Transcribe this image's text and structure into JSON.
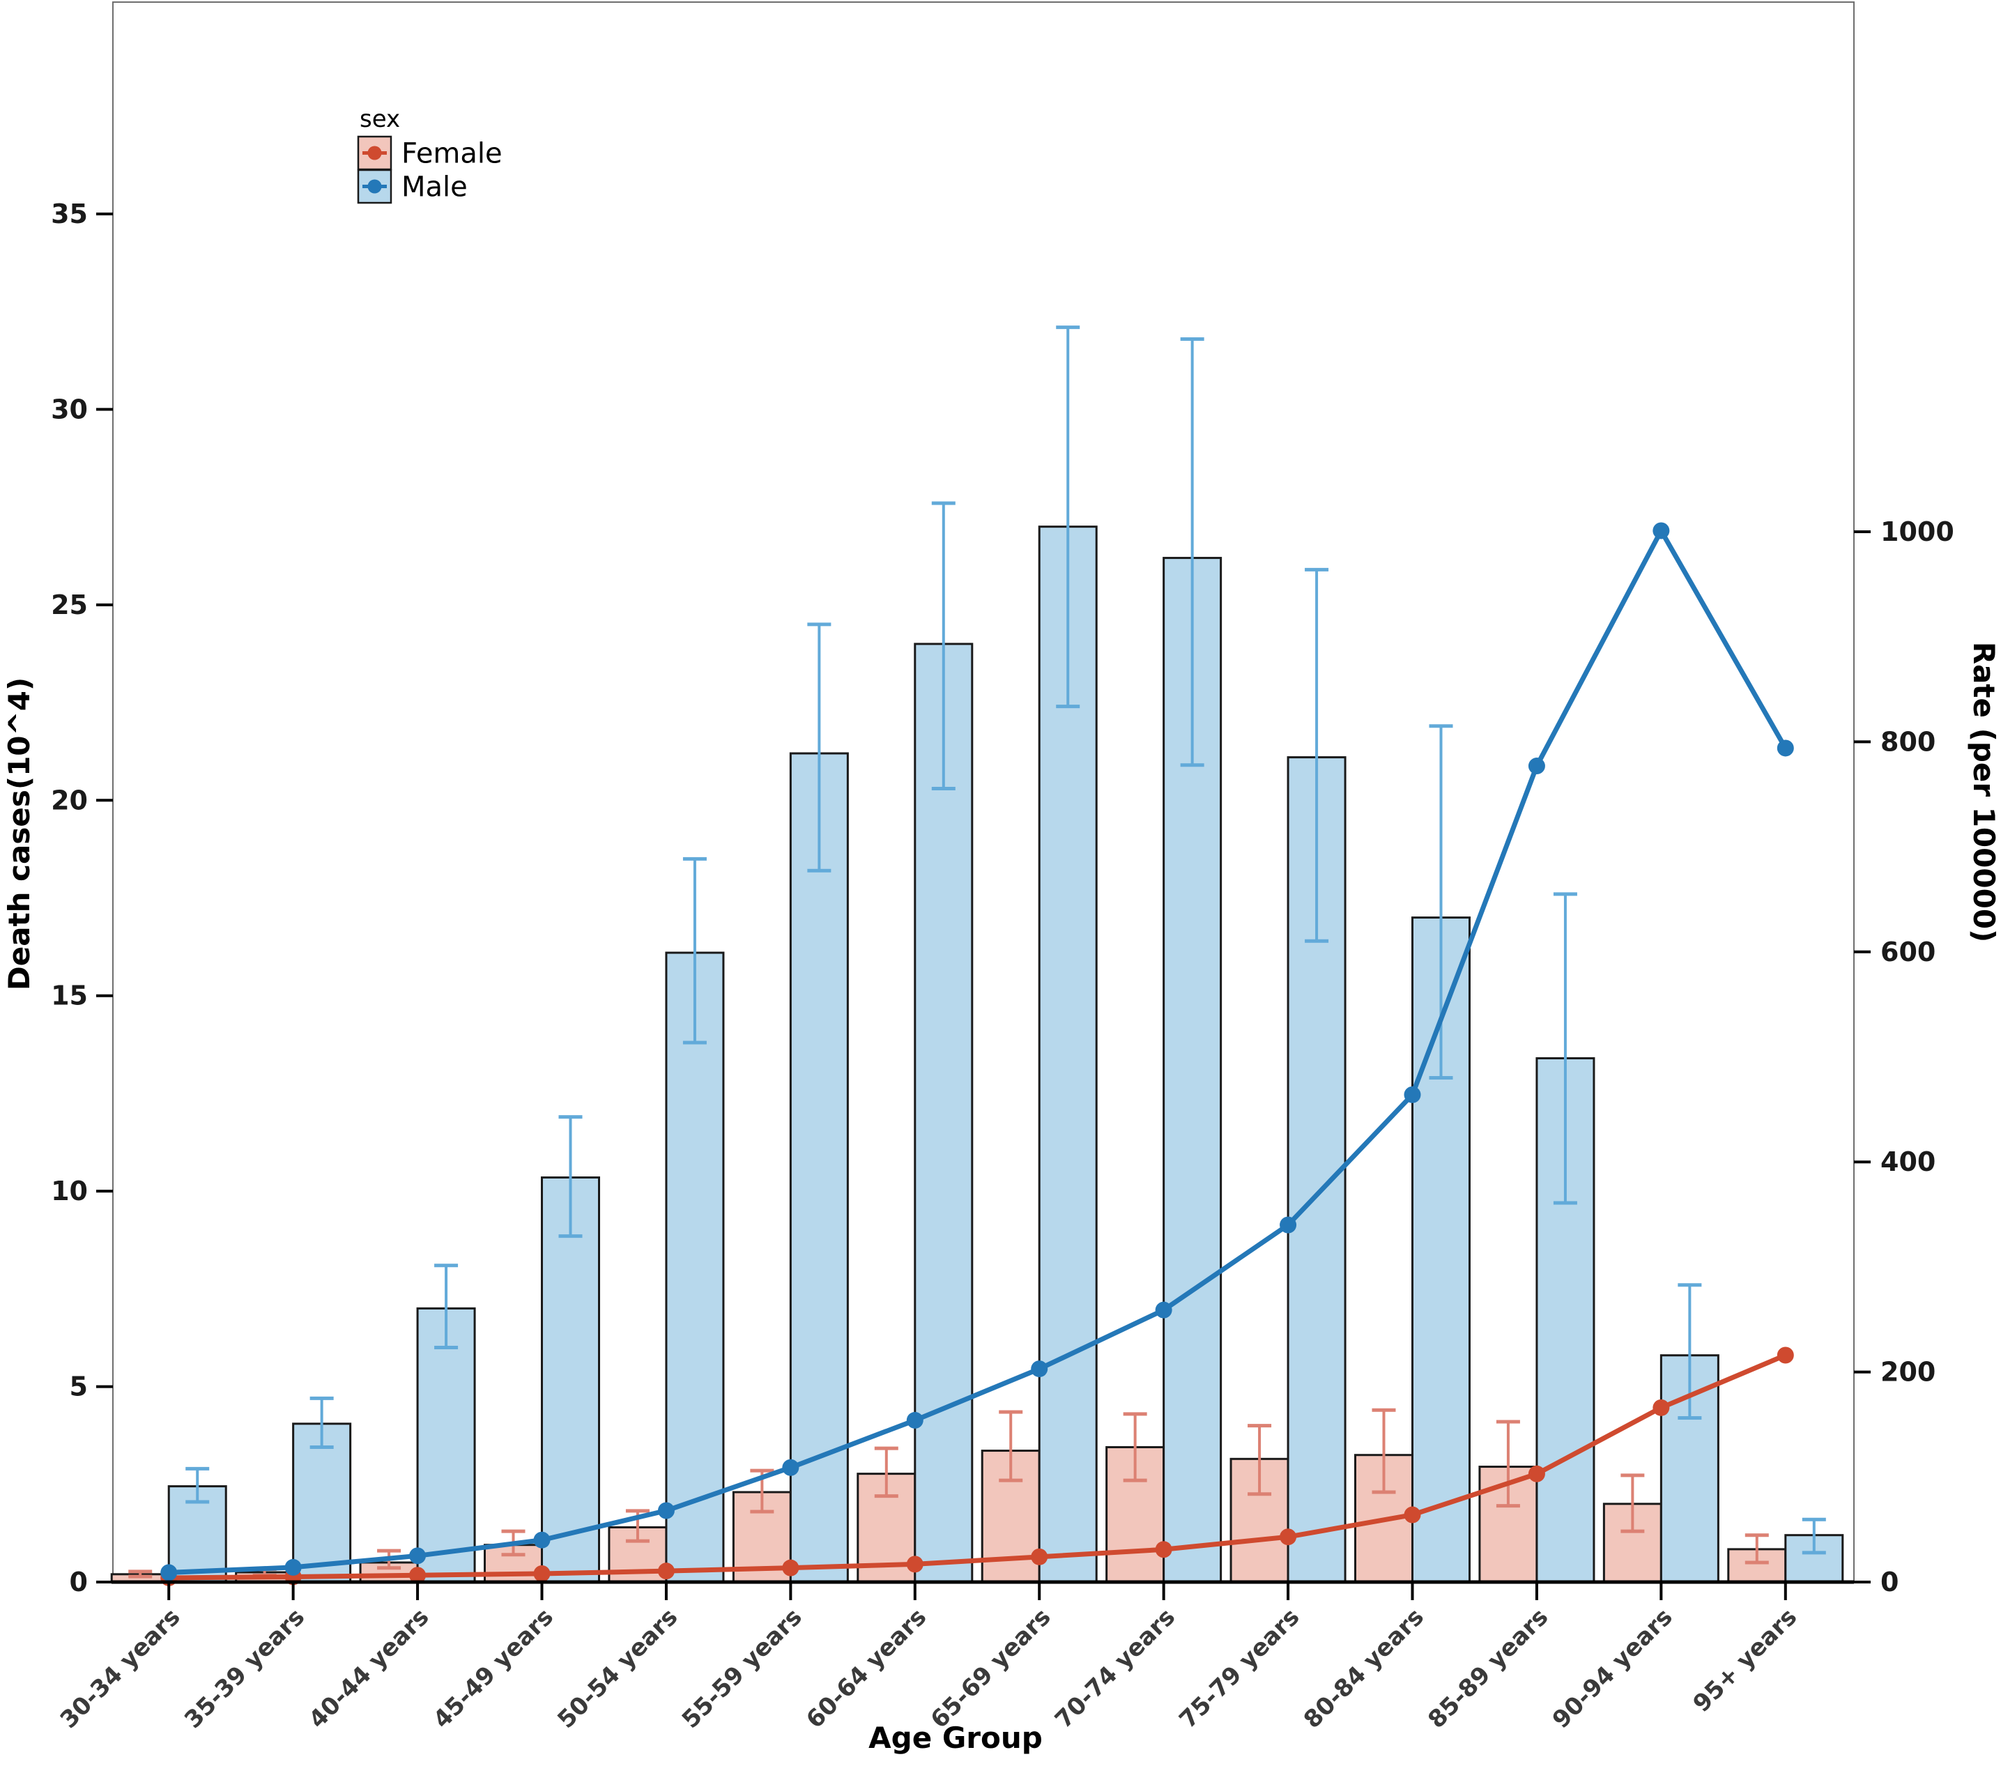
{
  "chart_data": {
    "type": "bar+line-dual-axis",
    "title": "",
    "xlabel": "Age Group",
    "categories": [
      "30-34 years",
      "35-39 years",
      "40-44 years",
      "45-49 years",
      "50-54 years",
      "55-59 years",
      "60-64 years",
      "65-69 years",
      "70-74 years",
      "75-79 years",
      "80-84 years",
      "85-89 years",
      "90-94 years",
      "95+ years"
    ],
    "left_axis": {
      "label": "Death cases(10^4)",
      "ticks": [
        0,
        5,
        10,
        15,
        20,
        25,
        30,
        35
      ],
      "min": 0,
      "max": 40.44
    },
    "right_axis": {
      "label": "Rate (per 100000)",
      "ticks": [
        0,
        200,
        400,
        600,
        800,
        1000
      ],
      "min": 0,
      "max": 1504
    },
    "legend": {
      "title": "sex",
      "entries": [
        {
          "label": "Female"
        },
        {
          "label": "Male"
        }
      ]
    },
    "bar_series": [
      {
        "name": "Female",
        "values": [
          0.2,
          0.25,
          0.5,
          0.95,
          1.4,
          2.3,
          2.77,
          3.36,
          3.45,
          3.15,
          3.25,
          2.95,
          2.0,
          0.84
        ],
        "ci_low": [
          0.14,
          0.17,
          0.36,
          0.7,
          1.05,
          1.8,
          2.2,
          2.6,
          2.6,
          2.25,
          2.3,
          1.95,
          1.3,
          0.5
        ],
        "ci_high": [
          0.27,
          0.33,
          0.8,
          1.3,
          1.82,
          2.85,
          3.42,
          4.35,
          4.3,
          4.0,
          4.4,
          4.1,
          2.73,
          1.2
        ]
      },
      {
        "name": "Male",
        "values": [
          2.45,
          4.05,
          7.0,
          10.35,
          16.1,
          21.2,
          24.0,
          27.0,
          26.2,
          21.1,
          17.0,
          13.4,
          5.8,
          1.2
        ],
        "ci_low": [
          2.05,
          3.45,
          6.0,
          8.85,
          13.8,
          18.2,
          20.3,
          22.4,
          20.9,
          16.4,
          12.9,
          9.7,
          4.2,
          0.75
        ],
        "ci_high": [
          2.9,
          4.7,
          8.1,
          11.9,
          18.5,
          24.5,
          27.6,
          32.1,
          31.8,
          25.9,
          21.9,
          17.6,
          7.6,
          1.6
        ]
      }
    ],
    "line_series": [
      {
        "name": "Female",
        "axis": "right",
        "values": [
          4,
          5,
          6.5,
          8,
          10.5,
          13.5,
          17,
          24,
          31,
          43,
          64,
          103,
          166,
          216
        ]
      },
      {
        "name": "Male",
        "axis": "right",
        "values": [
          9,
          14,
          25,
          40,
          68,
          109,
          154,
          203,
          259,
          340,
          464,
          777,
          1001,
          794
        ]
      }
    ],
    "colors": {
      "female_bar_fill": "#f2c6bc",
      "female_bar_border": "#1a1a1a",
      "female_error": "#dc8173",
      "female_line": "#cf4a2f",
      "male_bar_fill": "#b7d8ec",
      "male_bar_border": "#1a1a1a",
      "male_error": "#62aad9",
      "male_line": "#2478b8",
      "axis_line": "#000000",
      "panel_border": "#6e6e6e",
      "tick_label": "#1a1a1a",
      "x_tick_label": "#3a3a3a"
    }
  }
}
